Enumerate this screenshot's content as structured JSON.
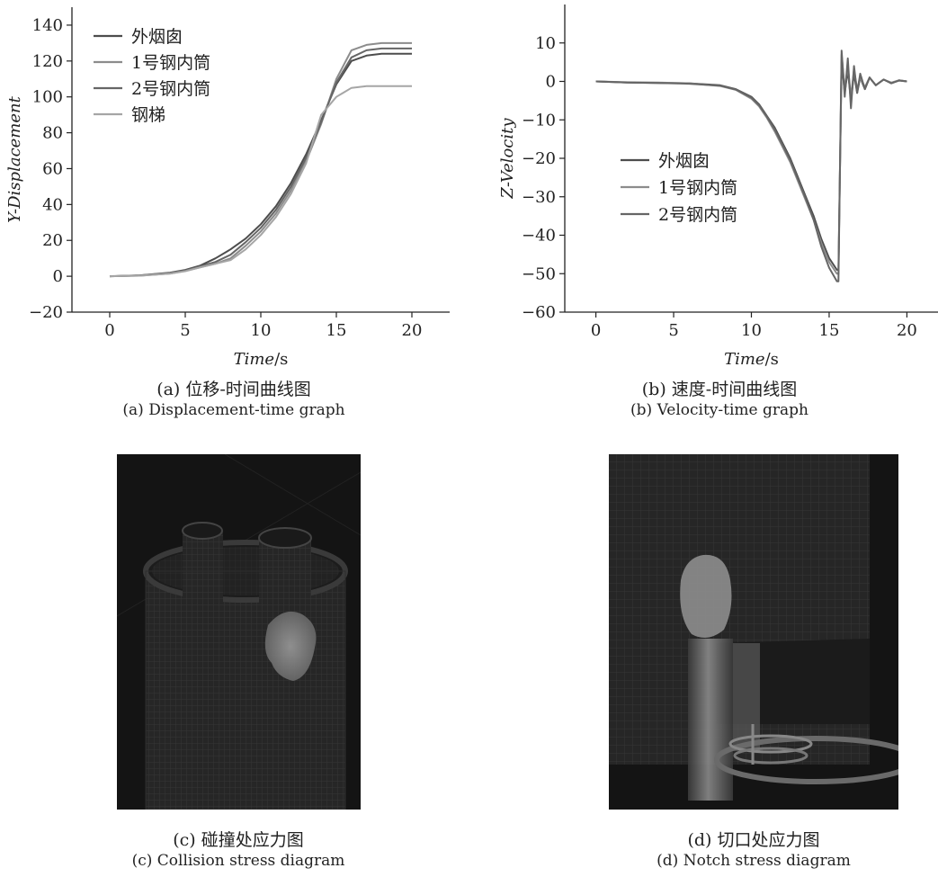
{
  "figure": {
    "panel_a": {
      "caption_zh": "(a) 位移-时间曲线图",
      "caption_en": "(a) Displacement-time graph",
      "chart_data": {
        "type": "line",
        "xlabel_italic": "Time",
        "xlabel_unit": "/s",
        "ylabel": "Y-Displacement",
        "xlim": [
          -2.5,
          22.5
        ],
        "ylim": [
          -20,
          150
        ],
        "xticks": [
          0,
          5,
          10,
          15,
          20
        ],
        "yticks": [
          -20,
          0,
          20,
          40,
          60,
          80,
          100,
          120,
          140
        ],
        "legend_placement": "top-left",
        "grid": false,
        "series": [
          {
            "name": "外烟囱",
            "color": "#4d4d4d",
            "x": [
              0,
              2,
              4,
              5,
              6,
              7,
              8,
              9,
              10,
              11,
              12,
              13,
              14,
              15,
              16,
              17,
              18,
              19,
              20
            ],
            "y": [
              0,
              0.5,
              2,
              3.5,
              6,
              10,
              15,
              21,
              29,
              39,
              52,
              68,
              87,
              107,
              120,
              123,
              124,
              124,
              124
            ]
          },
          {
            "name": "1号钢内筒",
            "color": "#8c8c8c",
            "x": [
              0,
              2,
              4,
              5,
              6,
              7,
              8,
              9,
              10,
              11,
              12,
              13,
              14,
              15,
              16,
              17,
              18,
              19,
              20
            ],
            "y": [
              0,
              0.3,
              1.5,
              3,
              5,
              7,
              10,
              17,
              25,
              35,
              48,
              64,
              85,
              110,
              126,
              129,
              130,
              130,
              130
            ]
          },
          {
            "name": "2号钢内筒",
            "color": "#666666",
            "x": [
              0,
              2,
              4,
              5,
              6,
              7,
              8,
              9,
              10,
              11,
              12,
              13,
              14,
              15,
              16,
              17,
              18,
              19,
              20
            ],
            "y": [
              0,
              0.4,
              1.8,
              3.2,
              5.5,
              8,
              12,
              19,
              27,
              37,
              50,
              66,
              86,
              108,
              122,
              126,
              127,
              127,
              127
            ]
          },
          {
            "name": "钢梯",
            "color": "#a6a6a6",
            "x": [
              0,
              2,
              4,
              5,
              6,
              7,
              8,
              9,
              10,
              11,
              12,
              13,
              14,
              15,
              16,
              17,
              18,
              19,
              20
            ],
            "y": [
              0,
              0.3,
              1.5,
              2.8,
              5,
              7,
              9,
              15,
              23,
              33,
              46,
              63,
              90,
              100,
              105,
              106,
              106,
              106,
              106
            ]
          }
        ]
      }
    },
    "panel_b": {
      "caption_zh": "(b) 速度-时间曲线图",
      "caption_en": "(b) Velocity-time graph",
      "chart_data": {
        "type": "line",
        "xlabel_italic": "Time",
        "xlabel_unit": "/s",
        "ylabel": "Z-Velocity",
        "xlim": [
          -2,
          22
        ],
        "ylim": [
          -60,
          20
        ],
        "xticks": [
          0,
          5,
          10,
          15,
          20
        ],
        "yticks": [
          -60,
          -50,
          -40,
          -30,
          -20,
          -10,
          0,
          10
        ],
        "legend_placement": "center-left",
        "grid": false,
        "series": [
          {
            "name": "外烟囱",
            "color": "#4d4d4d",
            "x": [
              0,
              2,
              4,
              6,
              8,
              9,
              10,
              10.5,
              11,
              11.5,
              12,
              12.5,
              13,
              13.5,
              14,
              14.5,
              15,
              15.5,
              15.6,
              15.8,
              16,
              16.2,
              16.4,
              16.6,
              16.8,
              17,
              17.3,
              17.6,
              18,
              18.5,
              19,
              19.5,
              20
            ],
            "y": [
              0,
              -0.3,
              -0.4,
              -0.5,
              -1,
              -2,
              -4,
              -6,
              -9,
              -12,
              -16,
              -20,
              -25,
              -30,
              -35,
              -41,
              -46,
              -49,
              -49,
              5,
              -3,
              3,
              -5,
              2,
              -3,
              1,
              -2,
              1,
              -1,
              0.5,
              -0.5,
              0.3,
              0
            ]
          },
          {
            "name": "1号钢内筒",
            "color": "#8c8c8c",
            "x": [
              0,
              2,
              4,
              6,
              8,
              9,
              10,
              10.5,
              11,
              11.5,
              12,
              12.5,
              13,
              13.5,
              14,
              14.5,
              15,
              15.5,
              15.6,
              15.8,
              16,
              16.2,
              16.4,
              16.6,
              16.8,
              17,
              17.3,
              17.6,
              18,
              18.5,
              19,
              19.5,
              20
            ],
            "y": [
              0,
              -0.2,
              -0.3,
              -0.5,
              -1.2,
              -2.2,
              -4.5,
              -6.5,
              -9.5,
              -13,
              -17,
              -21,
              -26,
              -31,
              -36,
              -42,
              -47,
              -50,
              -50,
              7,
              -2,
              4,
              -4,
              3,
              -2,
              1,
              -1.5,
              1,
              -1,
              0.5,
              -0.3,
              0.3,
              0
            ]
          },
          {
            "name": "2号钢内筒",
            "color": "#666666",
            "x": [
              0,
              2,
              4,
              6,
              8,
              9,
              10,
              10.5,
              11,
              11.5,
              12,
              12.5,
              13,
              13.5,
              14,
              14.5,
              15,
              15.5,
              15.6,
              15.8,
              16,
              16.2,
              16.4,
              16.6,
              16.8,
              17,
              17.3,
              17.6,
              18,
              18.5,
              19,
              19.5,
              20
            ],
            "y": [
              0,
              -0.3,
              -0.4,
              -0.6,
              -1.1,
              -2.1,
              -4.2,
              -6.2,
              -9.2,
              -12.5,
              -16.5,
              -20.5,
              -25.5,
              -30.5,
              -36,
              -43,
              -48.5,
              -52,
              -52,
              8,
              -4,
              6,
              -7,
              4,
              -3,
              2,
              -2,
              1,
              -1,
              0.5,
              -0.5,
              0.2,
              0
            ]
          }
        ]
      }
    },
    "panel_c": {
      "caption_zh": "(c) 碰撞处应力图",
      "caption_en": "(c) Collision stress diagram"
    },
    "panel_d": {
      "caption_zh": "(d) 切口处应力图",
      "caption_en": "(d) Notch stress diagram"
    }
  },
  "colors": {
    "render_bg": "#141414",
    "mesh_surface": "#262626",
    "mesh_line": "#3a3a3a",
    "stress_highlight": "#8a8a8a"
  }
}
